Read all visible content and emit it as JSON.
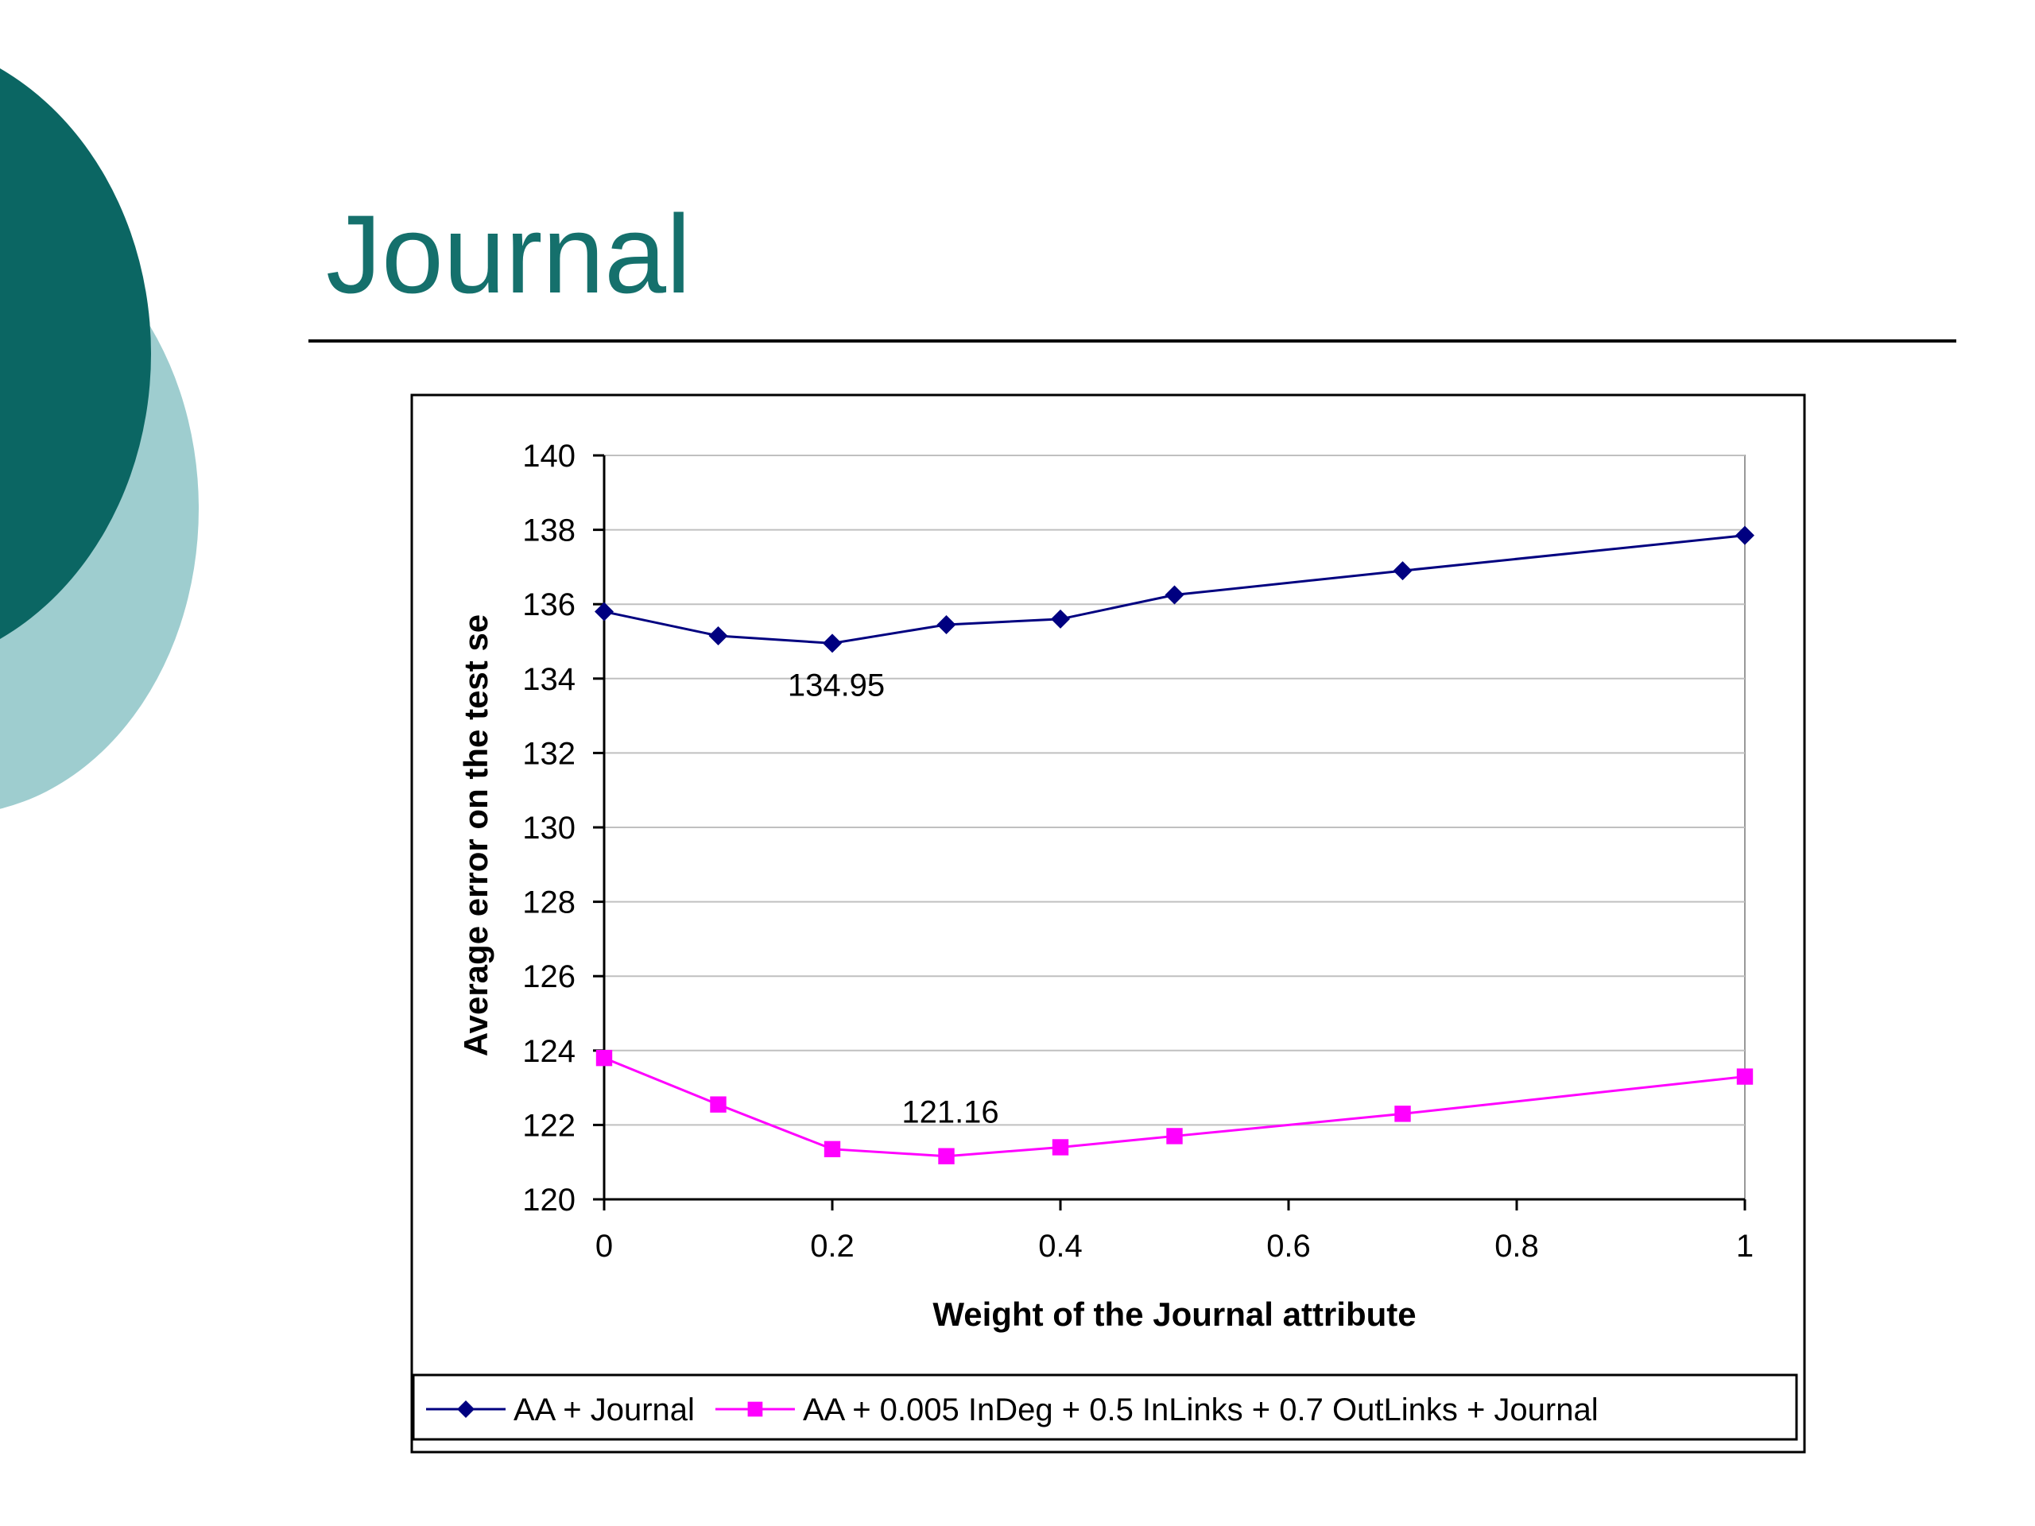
{
  "slide": {
    "title": "Journal",
    "theme_colors": {
      "dark_teal": "#0b6663",
      "light_teal": "#9ecdcf",
      "title": "#15706c"
    }
  },
  "chart_data": {
    "type": "line",
    "xlabel": "Weight of the Journal attribute",
    "ylabel": "Average error on the test se",
    "xlim": [
      0,
      1
    ],
    "ylim": [
      120,
      140
    ],
    "x_ticks": [
      0,
      0.2,
      0.4,
      0.6,
      0.8,
      1
    ],
    "x_tick_labels": [
      "0",
      "0.2",
      "0.4",
      "0.6",
      "0.8",
      "1"
    ],
    "y_ticks": [
      120,
      122,
      124,
      126,
      128,
      130,
      132,
      134,
      136,
      138,
      140
    ],
    "grid": "horizontal",
    "legend_placement": "bottom",
    "series": [
      {
        "name": "AA + Journal",
        "color": "#000080",
        "marker": "diamond",
        "x": [
          0,
          0.1,
          0.2,
          0.3,
          0.4,
          0.5,
          0.7,
          1
        ],
        "y": [
          135.8,
          135.15,
          134.95,
          135.45,
          135.6,
          136.25,
          136.9,
          137.85
        ]
      },
      {
        "name": "AA + 0.005 InDeg + 0.5 InLinks + 0.7 OutLinks + Journal",
        "color": "#ff00ff",
        "marker": "square",
        "x": [
          0,
          0.1,
          0.2,
          0.3,
          0.4,
          0.5,
          0.7,
          1
        ],
        "y": [
          123.8,
          122.55,
          121.35,
          121.16,
          121.4,
          121.7,
          122.3,
          123.3
        ]
      }
    ],
    "annotations": [
      {
        "text": "134.95",
        "x": 0.2,
        "y": 134.95
      },
      {
        "text": "121.16",
        "x": 0.3,
        "y": 121.16
      }
    ]
  }
}
